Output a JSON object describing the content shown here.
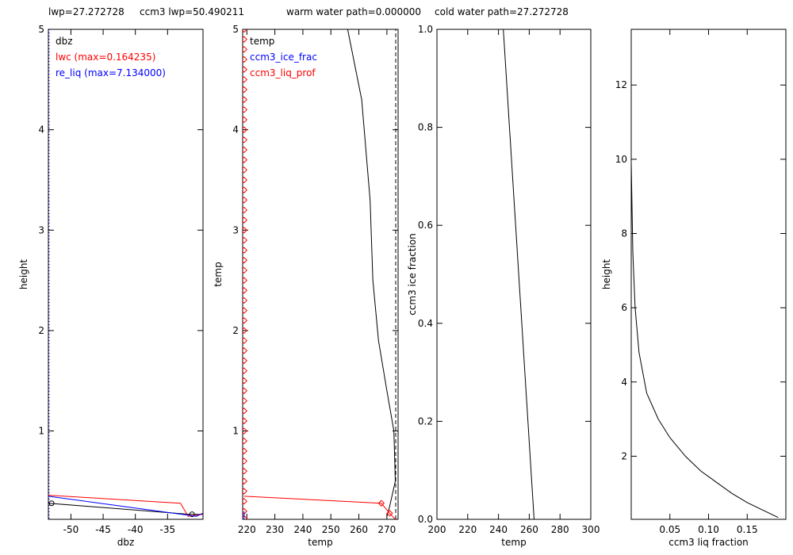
{
  "header": {
    "lwp": "lwp=27.272728",
    "ccm3_lwp": "ccm3 lwp=50.490211",
    "warm_path": "warm water path=0.000000",
    "cold_path": "cold water path=27.272728"
  },
  "colors": {
    "black": "#000000",
    "red": "#ff0000",
    "blue": "#0000ff"
  },
  "chart_data": [
    {
      "type": "line",
      "xlabel": "dbz",
      "ylabel": "height",
      "xlim": [
        -53.5,
        -29.5
      ],
      "ylim": [
        0.12,
        5.0
      ],
      "xticks": [
        -50,
        -45,
        -40,
        -35
      ],
      "yticks": [
        1,
        2,
        3,
        4,
        5
      ],
      "legend": [
        "dbz",
        "lwc (max=0.164235)",
        "re_liq (max=7.134000)"
      ],
      "legend_colors": [
        "#000000",
        "#ff0000",
        "#0000ff"
      ],
      "series": [
        {
          "name": "dbz",
          "color": "#000000",
          "x": [
            -53.5,
            -31.5,
            -29.5
          ],
          "y": [
            0.28,
            0.17,
            0.17
          ],
          "markers": [
            [
              -53,
              0.28
            ],
            [
              -31.2,
              0.17
            ]
          ]
        },
        {
          "name": "lwc (max=0.164235)",
          "color": "#ff0000",
          "x": [
            -53.5,
            -33.0,
            -31.8,
            -29.6
          ],
          "y": [
            0.36,
            0.28,
            0.15,
            0.17
          ]
        },
        {
          "name": "re_liq (max=7.134000)",
          "color": "#0000ff",
          "x": [
            -53.5,
            -30.5,
            -29.6
          ],
          "y": [
            0.35,
            0.15,
            0.18
          ]
        }
      ]
    },
    {
      "type": "line",
      "xlabel": "temp",
      "ylabel": "temp",
      "xlim": [
        218.5,
        274
      ],
      "ylim": [
        0.12,
        5.0
      ],
      "xticks": [
        220,
        230,
        240,
        250,
        260,
        270
      ],
      "yticks": [
        1,
        2,
        3,
        4,
        5
      ],
      "legend": [
        "temp",
        "ccm3_ice_frac",
        "ccm3_liq_prof"
      ],
      "legend_colors": [
        "#000000",
        "#0000ff",
        "#ff0000"
      ],
      "series": [
        {
          "name": "temp",
          "color": "#000000",
          "x": [
            256,
            261,
            264,
            265,
            267,
            270,
            272.5,
            273,
            271,
            270
          ],
          "y": [
            5.0,
            4.3,
            3.3,
            2.5,
            1.9,
            1.4,
            1.0,
            0.5,
            0.25,
            0.15
          ]
        },
        {
          "name": "ccm3_liq_prof",
          "color": "#ff0000",
          "x": [
            219,
            268,
            271,
            272,
            273
          ],
          "y": [
            0.35,
            0.28,
            0.18,
            0.15,
            0.12
          ]
        },
        {
          "name": "ccm3_liq_prof_markers",
          "color": "#ff0000",
          "marker_x": [
            219,
            219,
            219,
            219,
            219,
            219,
            219,
            219,
            219,
            219,
            219,
            219,
            219,
            219,
            219,
            219,
            219,
            219,
            219,
            219,
            219,
            219,
            219,
            219,
            219,
            219,
            219,
            219,
            219,
            219,
            219,
            219,
            219,
            219,
            219,
            219,
            219,
            219,
            219,
            219,
            219,
            219,
            219,
            219,
            219,
            219,
            219,
            219,
            219,
            219,
            268,
            271
          ],
          "marker_y": [
            0.2,
            0.3,
            0.4,
            0.5,
            0.6,
            0.7,
            0.8,
            0.9,
            1.0,
            1.1,
            1.2,
            1.3,
            1.4,
            1.5,
            1.6,
            1.7,
            1.8,
            1.9,
            2.0,
            2.1,
            2.2,
            2.3,
            2.4,
            2.5,
            2.6,
            2.7,
            2.8,
            2.9,
            3.0,
            3.1,
            3.2,
            3.3,
            3.4,
            3.5,
            3.6,
            3.7,
            3.8,
            3.9,
            4.0,
            4.1,
            4.2,
            4.3,
            4.4,
            4.5,
            4.6,
            4.7,
            4.8,
            4.9,
            5.0,
            0.13,
            0.28,
            0.18
          ]
        },
        {
          "name": "ccm3_ice_frac",
          "color": "#0000ff",
          "x": [
            219,
            219
          ],
          "y": [
            0.12,
            0.2
          ]
        },
        {
          "name": "freezing_line",
          "color": "#000000",
          "dashed": true,
          "x": [
            273.15,
            273.15
          ],
          "y": [
            0.12,
            5.0
          ]
        }
      ]
    },
    {
      "type": "line",
      "xlabel": "temp",
      "ylabel": "ccm3 ice fraction",
      "xlim": [
        200,
        300
      ],
      "ylim": [
        0,
        1.0
      ],
      "xticks": [
        200,
        220,
        240,
        260,
        280,
        300
      ],
      "xticklabels": [
        "200",
        "220",
        "240",
        "260",
        "280",
        "300"
      ],
      "yticks": [
        0.0,
        0.2,
        0.4,
        0.6,
        0.8,
        1.0
      ],
      "yticklabels": [
        "0.0",
        "0.2",
        "0.4",
        "0.6",
        "0.8",
        "1.0"
      ],
      "series": [
        {
          "name": "",
          "color": "#000000",
          "x": [
            243.15,
            263.15
          ],
          "y": [
            1.0,
            0.0
          ]
        }
      ]
    },
    {
      "type": "line",
      "xlabel": "ccm3 liq fraction",
      "ylabel": "height",
      "xlim": [
        0,
        0.2
      ],
      "ylim": [
        0.3,
        13.5
      ],
      "xticks": [
        0.05,
        0.1,
        0.15
      ],
      "xticklabels": [
        "0.05",
        "0.10",
        "0.15"
      ],
      "yticks": [
        2,
        4,
        6,
        8,
        10,
        12
      ],
      "series": [
        {
          "name": "",
          "color": "#000000",
          "x": [
            0.0,
            0.002,
            0.005,
            0.01,
            0.02,
            0.035,
            0.05,
            0.07,
            0.09,
            0.11,
            0.13,
            0.15,
            0.17,
            0.19
          ],
          "y": [
            9.9,
            7.5,
            6.0,
            4.8,
            3.7,
            3.0,
            2.5,
            2.0,
            1.6,
            1.3,
            1.0,
            0.75,
            0.55,
            0.35
          ]
        }
      ]
    }
  ]
}
